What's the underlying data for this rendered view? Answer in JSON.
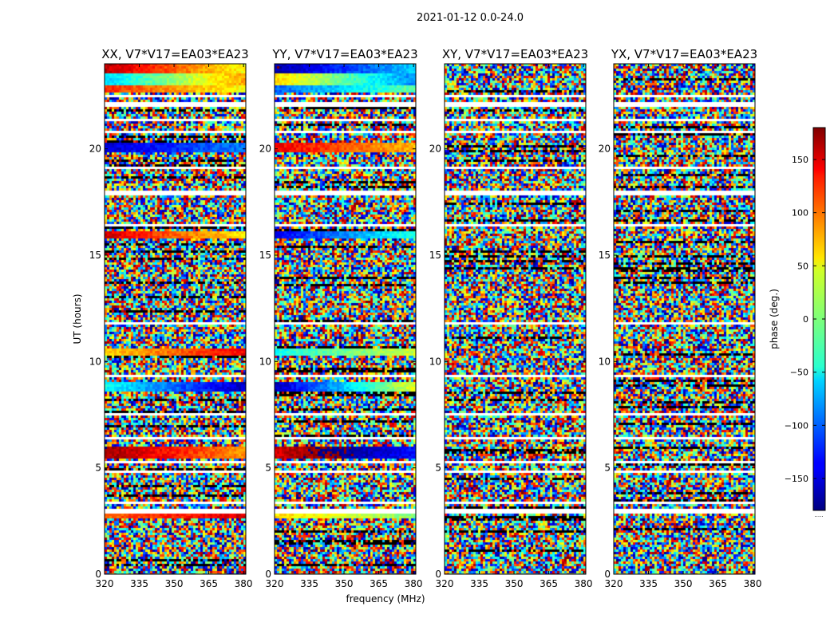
{
  "figure": {
    "suptitle": "2021-01-12 0.0-24.0"
  },
  "chart_data": {
    "type": "heatmap",
    "xlabel": "frequency (MHz)",
    "ylabel": "UT (hours)",
    "xlim": [
      320,
      381
    ],
    "ylim": [
      0,
      24
    ],
    "xticks": [
      320,
      335,
      350,
      365,
      380
    ],
    "yticks": [
      0,
      5,
      10,
      15,
      20
    ],
    "panels": [
      {
        "title": "XX, V7*V17=EA03*EA23",
        "smooth_bands": [
          {
            "t0": 23.5,
            "t1": 24.0,
            "phase": 160,
            "slope": -120
          },
          {
            "t0": 23.0,
            "t1": 23.5,
            "phase": -60,
            "slope": 140
          },
          {
            "t0": 22.6,
            "t1": 23.0,
            "phase": 120,
            "slope": -80
          },
          {
            "t0": 19.8,
            "t1": 20.3,
            "phase": -150,
            "slope": 60
          },
          {
            "t0": 15.8,
            "t1": 16.1,
            "phase": 150,
            "slope": -100
          },
          {
            "t0": 10.3,
            "t1": 10.6,
            "phase": 60,
            "slope": 80
          },
          {
            "t0": 8.6,
            "t1": 9.0,
            "phase": -40,
            "slope": -120
          },
          {
            "t0": 5.4,
            "t1": 6.0,
            "phase": 170,
            "slope": -90
          },
          {
            "t0": 2.6,
            "t1": 2.9,
            "phase": 100,
            "slope": 50
          }
        ]
      },
      {
        "title": "YY, V7*V17=EA03*EA23",
        "smooth_bands": [
          {
            "t0": 23.5,
            "t1": 24.0,
            "phase": -170,
            "slope": 110
          },
          {
            "t0": 23.0,
            "t1": 23.5,
            "phase": 60,
            "slope": -150
          },
          {
            "t0": 22.6,
            "t1": 23.0,
            "phase": -100,
            "slope": 90
          },
          {
            "t0": 19.8,
            "t1": 20.3,
            "phase": 140,
            "slope": -70
          },
          {
            "t0": 15.8,
            "t1": 16.1,
            "phase": -140,
            "slope": 110
          },
          {
            "t0": 10.3,
            "t1": 10.6,
            "phase": -40,
            "slope": 70
          },
          {
            "t0": 8.6,
            "t1": 9.0,
            "phase": -160,
            "slope": 200
          },
          {
            "t0": 5.4,
            "t1": 6.0,
            "phase": 150,
            "slope": 80
          },
          {
            "t0": 2.6,
            "t1": 2.9,
            "phase": 60,
            "slope": -60
          }
        ]
      },
      {
        "title": "XY, V7*V17=EA03*EA23",
        "smooth_bands": []
      },
      {
        "title": "YX, V7*V17=EA03*EA23",
        "smooth_bands": []
      }
    ],
    "flagged_rows_hours": [
      [
        2.85,
        3.05
      ],
      [
        3.3,
        3.38
      ],
      [
        4.8,
        4.9
      ],
      [
        5.2,
        5.28
      ],
      [
        6.3,
        6.4
      ],
      [
        7.5,
        7.56
      ],
      [
        8.2,
        8.28
      ],
      [
        9.3,
        9.38
      ],
      [
        11.7,
        11.8
      ],
      [
        14.5,
        14.56
      ],
      [
        16.3,
        16.45
      ],
      [
        17.1,
        17.16
      ],
      [
        17.8,
        18.05
      ],
      [
        19.05,
        19.12
      ],
      [
        19.6,
        19.66
      ],
      [
        20.7,
        20.8
      ],
      [
        21.3,
        21.4
      ],
      [
        22.0,
        22.2
      ],
      [
        22.45,
        22.55
      ]
    ],
    "colorbar": {
      "label": "phase (deg.)",
      "range": [
        -180,
        180
      ],
      "ticks": [
        150,
        100,
        50,
        0,
        -50,
        -100,
        -150
      ],
      "tick_labels": [
        "150",
        "100",
        "50",
        "0",
        "−50",
        "−100",
        "−150"
      ],
      "extra_label": ".....",
      "colormap": "jet"
    }
  }
}
